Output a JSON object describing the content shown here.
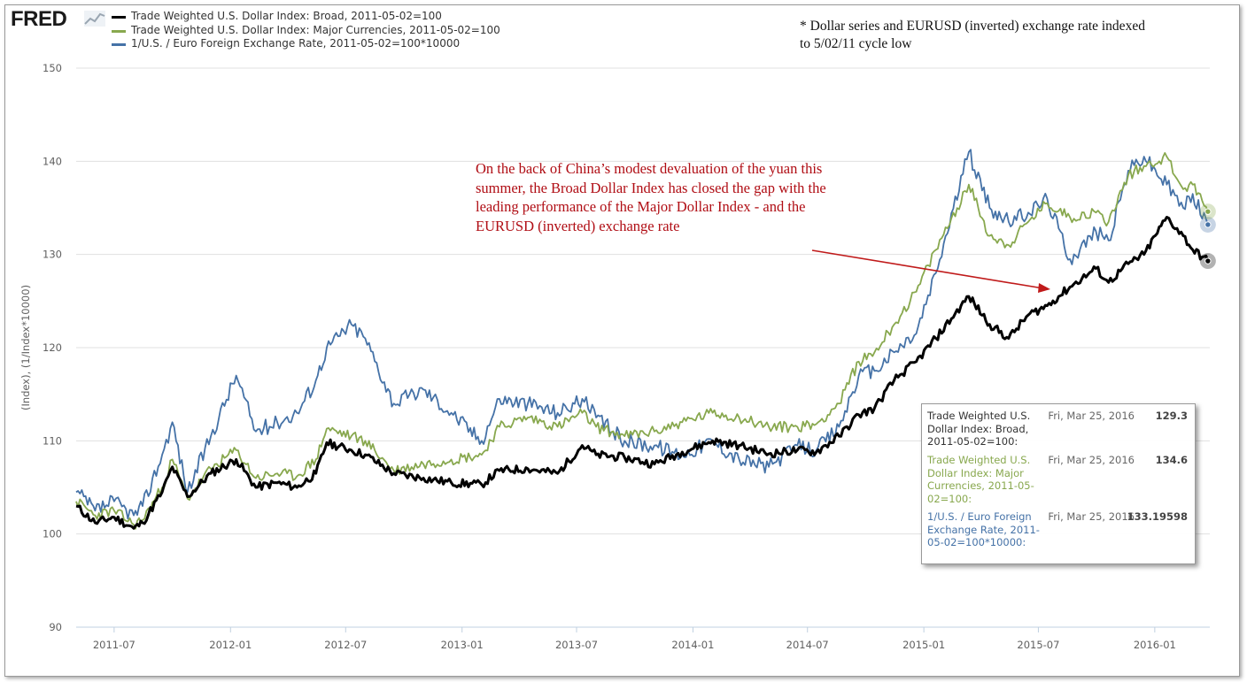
{
  "brand": {
    "name": "FRED"
  },
  "legend": [
    {
      "label": "Trade Weighted U.S. Dollar Index: Broad, 2011-05-02=100",
      "color": "#000000"
    },
    {
      "label": "Trade Weighted U.S. Dollar Index: Major Currencies, 2011-05-02=100",
      "color": "#88a84e"
    },
    {
      "label": "1/U.S. / Euro Foreign Exchange Rate, 2011-05-02=100*10000",
      "color": "#4572a7"
    }
  ],
  "note": "* Dollar series and EURUSD (inverted) exchange rate indexed to 5/02/11 cycle low",
  "annotation": "On the back of China’s modest devaluation of the yuan this summer, the Broad Dollar Index has closed the gap with the leading performance of the Major Dollar Index - and the EURUSD (inverted) exchange rate",
  "tooltip": [
    {
      "label": "Trade Weighted U.S. Dollar Index: Broad, 2011-05-02=100:",
      "date": "Fri, Mar 25, 2016",
      "value": "129.3",
      "color": "#333333"
    },
    {
      "label": "Trade Weighted U.S. Dollar Index: Major Currencies, 2011-05-02=100:",
      "date": "Fri, Mar 25, 2016",
      "value": "134.6",
      "color": "#88a84e"
    },
    {
      "label": "1/U.S. / Euro Foreign Exchange Rate, 2011-05-02=100*10000:",
      "date": "Fri, Mar 25, 2016",
      "value": "133.19598",
      "color": "#4572a7"
    }
  ],
  "chart_data": {
    "type": "line",
    "ylabel": "(Index), (1/Index*10000)",
    "ylim": [
      90,
      150
    ],
    "yticks": [
      90,
      100,
      110,
      120,
      130,
      140,
      150
    ],
    "xlim": [
      "2011-05-02",
      "2016-03-28"
    ],
    "xticks": [
      "2011-07",
      "2012-01",
      "2012-07",
      "2013-01",
      "2013-07",
      "2014-01",
      "2014-07",
      "2015-01",
      "2015-07",
      "2016-01"
    ],
    "grid": "horizontal",
    "series": [
      {
        "name": "Trade Weighted U.S. Dollar Index: Broad, 2011-05-02=100",
        "color": "#000000",
        "points": [
          [
            "2011-05-02",
            103.0
          ],
          [
            "2011-06-01",
            101.2
          ],
          [
            "2011-07-01",
            101.8
          ],
          [
            "2011-08-01",
            100.6
          ],
          [
            "2011-08-15",
            101.2
          ],
          [
            "2011-09-15",
            104.5
          ],
          [
            "2011-10-01",
            107.2
          ],
          [
            "2011-10-25",
            104.0
          ],
          [
            "2011-12-01",
            106.5
          ],
          [
            "2012-01-10",
            108.0
          ],
          [
            "2012-02-10",
            105.0
          ],
          [
            "2012-03-15",
            105.5
          ],
          [
            "2012-04-15",
            105.0
          ],
          [
            "2012-05-15",
            106.5
          ],
          [
            "2012-06-01",
            109.8
          ],
          [
            "2012-07-10",
            109.0
          ],
          [
            "2012-08-01",
            108.5
          ],
          [
            "2012-09-15",
            106.5
          ],
          [
            "2012-11-01",
            106.0
          ],
          [
            "2012-12-15",
            105.5
          ],
          [
            "2013-02-01",
            105.3
          ],
          [
            "2013-03-01",
            106.8
          ],
          [
            "2013-04-15",
            107.0
          ],
          [
            "2013-06-01",
            106.5
          ],
          [
            "2013-07-10",
            109.5
          ],
          [
            "2013-08-01",
            108.5
          ],
          [
            "2013-09-15",
            108.2
          ],
          [
            "2013-11-01",
            107.5
          ],
          [
            "2013-12-15",
            108.8
          ],
          [
            "2014-02-01",
            110.0
          ],
          [
            "2014-03-15",
            109.5
          ],
          [
            "2014-05-01",
            108.6
          ],
          [
            "2014-06-15",
            109.0
          ],
          [
            "2014-07-15",
            108.8
          ],
          [
            "2014-08-20",
            110.5
          ],
          [
            "2014-09-20",
            112.8
          ],
          [
            "2014-10-15",
            113.5
          ],
          [
            "2014-11-15",
            116.5
          ],
          [
            "2014-12-20",
            118.5
          ],
          [
            "2015-01-20",
            121.0
          ],
          [
            "2015-03-13",
            125.5
          ],
          [
            "2015-04-15",
            122.5
          ],
          [
            "2015-05-15",
            121.0
          ],
          [
            "2015-06-15",
            123.5
          ],
          [
            "2015-07-15",
            124.5
          ],
          [
            "2015-08-20",
            126.5
          ],
          [
            "2015-09-30",
            128.5
          ],
          [
            "2015-10-20",
            127.0
          ],
          [
            "2015-11-20",
            129.0
          ],
          [
            "2015-12-15",
            130.0
          ],
          [
            "2016-01-20",
            134.0
          ],
          [
            "2016-02-15",
            132.0
          ],
          [
            "2016-03-01",
            130.5
          ],
          [
            "2016-03-25",
            129.3
          ]
        ]
      },
      {
        "name": "Trade Weighted U.S. Dollar Index: Major Currencies, 2011-05-02=100",
        "color": "#88a84e",
        "points": [
          [
            "2011-05-02",
            103.5
          ],
          [
            "2011-06-01",
            102.0
          ],
          [
            "2011-07-01",
            102.5
          ],
          [
            "2011-08-01",
            101.0
          ],
          [
            "2011-08-15",
            101.5
          ],
          [
            "2011-09-15",
            105.0
          ],
          [
            "2011-10-01",
            108.0
          ],
          [
            "2011-10-25",
            103.8
          ],
          [
            "2011-12-01",
            107.0
          ],
          [
            "2012-01-10",
            109.0
          ],
          [
            "2012-02-10",
            106.0
          ],
          [
            "2012-03-15",
            106.5
          ],
          [
            "2012-04-15",
            106.2
          ],
          [
            "2012-05-15",
            108.0
          ],
          [
            "2012-06-01",
            111.3
          ],
          [
            "2012-07-10",
            110.5
          ],
          [
            "2012-08-01",
            110.0
          ],
          [
            "2012-09-15",
            106.8
          ],
          [
            "2012-11-01",
            107.5
          ],
          [
            "2012-12-15",
            108.0
          ],
          [
            "2013-02-01",
            108.5
          ],
          [
            "2013-03-01",
            111.5
          ],
          [
            "2013-04-15",
            112.5
          ],
          [
            "2013-06-01",
            111.5
          ],
          [
            "2013-07-10",
            113.0
          ],
          [
            "2013-08-01",
            111.5
          ],
          [
            "2013-09-15",
            110.5
          ],
          [
            "2013-11-01",
            111.0
          ],
          [
            "2013-12-15",
            112.0
          ],
          [
            "2014-02-01",
            113.0
          ],
          [
            "2014-03-15",
            112.5
          ],
          [
            "2014-05-01",
            111.5
          ],
          [
            "2014-06-15",
            111.5
          ],
          [
            "2014-07-15",
            111.8
          ],
          [
            "2014-08-20",
            114.0
          ],
          [
            "2014-09-20",
            118.5
          ],
          [
            "2014-10-15",
            119.5
          ],
          [
            "2014-11-15",
            122.5
          ],
          [
            "2014-12-20",
            126.0
          ],
          [
            "2015-01-20",
            130.5
          ],
          [
            "2015-03-13",
            137.5
          ],
          [
            "2015-04-15",
            132.0
          ],
          [
            "2015-05-15",
            131.0
          ],
          [
            "2015-06-15",
            133.5
          ],
          [
            "2015-07-15",
            135.5
          ],
          [
            "2015-08-20",
            134.0
          ],
          [
            "2015-09-30",
            134.5
          ],
          [
            "2015-10-20",
            133.5
          ],
          [
            "2015-11-20",
            138.5
          ],
          [
            "2015-12-15",
            139.5
          ],
          [
            "2016-01-20",
            140.5
          ],
          [
            "2016-02-15",
            137.0
          ],
          [
            "2016-03-01",
            137.5
          ],
          [
            "2016-03-25",
            134.6
          ]
        ]
      },
      {
        "name": "1/U.S. / Euro Foreign Exchange Rate, 2011-05-02=100*10000",
        "color": "#4572a7",
        "points": [
          [
            "2011-05-02",
            104.5
          ],
          [
            "2011-06-01",
            102.5
          ],
          [
            "2011-07-01",
            103.5
          ],
          [
            "2011-08-01",
            102.0
          ],
          [
            "2011-08-15",
            103.0
          ],
          [
            "2011-09-15",
            108.5
          ],
          [
            "2011-10-01",
            112.0
          ],
          [
            "2011-10-25",
            104.5
          ],
          [
            "2011-12-01",
            110.5
          ],
          [
            "2012-01-10",
            117.0
          ],
          [
            "2012-02-10",
            111.0
          ],
          [
            "2012-03-15",
            112.0
          ],
          [
            "2012-04-15",
            113.0
          ],
          [
            "2012-05-15",
            116.5
          ],
          [
            "2012-06-01",
            120.0
          ],
          [
            "2012-07-10",
            122.5
          ],
          [
            "2012-08-01",
            121.0
          ],
          [
            "2012-09-15",
            114.0
          ],
          [
            "2012-11-01",
            115.5
          ],
          [
            "2012-12-15",
            113.0
          ],
          [
            "2013-02-01",
            110.0
          ],
          [
            "2013-03-01",
            114.5
          ],
          [
            "2013-04-15",
            114.0
          ],
          [
            "2013-06-01",
            113.0
          ],
          [
            "2013-07-10",
            114.5
          ],
          [
            "2013-08-01",
            112.5
          ],
          [
            "2013-09-15",
            110.0
          ],
          [
            "2013-11-01",
            109.5
          ],
          [
            "2013-12-15",
            108.5
          ],
          [
            "2014-02-01",
            110.0
          ],
          [
            "2014-03-15",
            108.0
          ],
          [
            "2014-05-01",
            107.2
          ],
          [
            "2014-06-15",
            109.5
          ],
          [
            "2014-07-15",
            109.0
          ],
          [
            "2014-08-20",
            111.5
          ],
          [
            "2014-09-20",
            117.0
          ],
          [
            "2014-10-15",
            117.5
          ],
          [
            "2014-11-15",
            119.5
          ],
          [
            "2014-12-20",
            121.5
          ],
          [
            "2015-01-20",
            128.0
          ],
          [
            "2015-03-13",
            141.0
          ],
          [
            "2015-04-15",
            135.0
          ],
          [
            "2015-05-15",
            133.5
          ],
          [
            "2015-06-15",
            134.5
          ],
          [
            "2015-07-15",
            136.0
          ],
          [
            "2015-08-20",
            129.5
          ],
          [
            "2015-09-30",
            132.5
          ],
          [
            "2015-10-20",
            131.5
          ],
          [
            "2015-11-20",
            139.0
          ],
          [
            "2015-12-15",
            140.5
          ],
          [
            "2016-01-20",
            137.5
          ],
          [
            "2016-02-15",
            135.0
          ],
          [
            "2016-03-01",
            136.5
          ],
          [
            "2016-03-25",
            133.2
          ]
        ]
      }
    ]
  }
}
